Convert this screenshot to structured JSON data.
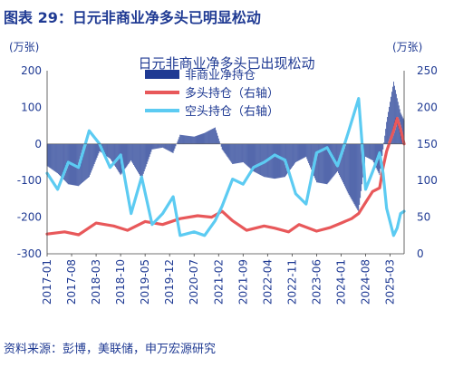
{
  "figure": {
    "title": "图表 29：日元非商业净多头已明显松动",
    "source": "资料来源：彭博，美联储，申万宏源研究"
  },
  "colors": {
    "net": "#1f3a93",
    "long": "#e8585a",
    "short": "#5ccbf2",
    "title": "#1f3a93"
  },
  "chart_data": {
    "type": "line",
    "title": "日元非商业净多头已出现松动",
    "y_left_unit": "(万张)",
    "y_right_unit": "(万张)",
    "y_left": {
      "min": -300,
      "max": 200,
      "ticks": [
        -300,
        -200,
        -100,
        0,
        100,
        200
      ]
    },
    "y_right": {
      "min": 0,
      "max": 250,
      "ticks": [
        0,
        50,
        100,
        150,
        200,
        250
      ]
    },
    "x_tick_labels": [
      "2017-01",
      "2017-08",
      "2018-03",
      "2018-10",
      "2019-05",
      "2019-12",
      "2020-07",
      "2021-02",
      "2021-09",
      "2022-04",
      "2022-11",
      "2023-06",
      "2024-01",
      "2024-08",
      "2025-03"
    ],
    "x_range": [
      "2017-01",
      "2025-07"
    ],
    "legend": {
      "placement": "top-center",
      "entries": [
        "非商业净持仓",
        "多头持仓（右轴）",
        "空头持仓（右轴）"
      ]
    },
    "series": [
      {
        "name": "非商业净持仓",
        "axis": "left",
        "style": "bar",
        "points": [
          [
            "2017-01",
            -60
          ],
          [
            "2017-04",
            -80
          ],
          [
            "2017-07",
            -110
          ],
          [
            "2017-10",
            -115
          ],
          [
            "2018-01",
            -90
          ],
          [
            "2018-04",
            -20
          ],
          [
            "2018-07",
            -40
          ],
          [
            "2018-10",
            -85
          ],
          [
            "2019-01",
            -45
          ],
          [
            "2019-04",
            -95
          ],
          [
            "2019-07",
            -15
          ],
          [
            "2019-10",
            -10
          ],
          [
            "2020-01",
            -25
          ],
          [
            "2020-03",
            25
          ],
          [
            "2020-07",
            20
          ],
          [
            "2020-10",
            30
          ],
          [
            "2021-01",
            45
          ],
          [
            "2021-03",
            -15
          ],
          [
            "2021-06",
            -55
          ],
          [
            "2021-09",
            -50
          ],
          [
            "2021-12",
            -75
          ],
          [
            "2022-03",
            -90
          ],
          [
            "2022-06",
            -95
          ],
          [
            "2022-09",
            -90
          ],
          [
            "2022-12",
            -50
          ],
          [
            "2023-03",
            -35
          ],
          [
            "2023-06",
            -105
          ],
          [
            "2023-09",
            -110
          ],
          [
            "2023-12",
            -75
          ],
          [
            "2024-03",
            -135
          ],
          [
            "2024-06",
            -185
          ],
          [
            "2024-08",
            -35
          ],
          [
            "2024-10",
            -45
          ],
          [
            "2024-12",
            -85
          ],
          [
            "2025-01",
            -15
          ],
          [
            "2025-02",
            60
          ],
          [
            "2025-04",
            170
          ],
          [
            "2025-05",
            125
          ],
          [
            "2025-06",
            85
          ],
          [
            "2025-07",
            65
          ]
        ]
      },
      {
        "name": "多头持仓（右轴）",
        "axis": "right",
        "style": "line",
        "points": [
          [
            "2017-01",
            27
          ],
          [
            "2017-06",
            30
          ],
          [
            "2017-10",
            26
          ],
          [
            "2018-03",
            42
          ],
          [
            "2018-08",
            38
          ],
          [
            "2018-12",
            32
          ],
          [
            "2019-05",
            44
          ],
          [
            "2019-10",
            40
          ],
          [
            "2020-03",
            48
          ],
          [
            "2020-08",
            52
          ],
          [
            "2020-12",
            50
          ],
          [
            "2021-03",
            58
          ],
          [
            "2021-06",
            45
          ],
          [
            "2021-10",
            32
          ],
          [
            "2022-03",
            38
          ],
          [
            "2022-06",
            35
          ],
          [
            "2022-10",
            30
          ],
          [
            "2023-01",
            40
          ],
          [
            "2023-06",
            31
          ],
          [
            "2023-10",
            36
          ],
          [
            "2024-01",
            42
          ],
          [
            "2024-04",
            48
          ],
          [
            "2024-06",
            55
          ],
          [
            "2024-08",
            70
          ],
          [
            "2024-10",
            85
          ],
          [
            "2024-12",
            90
          ],
          [
            "2025-01",
            118
          ],
          [
            "2025-02",
            140
          ],
          [
            "2025-04",
            168
          ],
          [
            "2025-05",
            185
          ],
          [
            "2025-06",
            170
          ],
          [
            "2025-07",
            150
          ]
        ]
      },
      {
        "name": "空头持仓（右轴）",
        "axis": "right",
        "style": "line",
        "points": [
          [
            "2017-01",
            110
          ],
          [
            "2017-04",
            88
          ],
          [
            "2017-07",
            125
          ],
          [
            "2017-10",
            118
          ],
          [
            "2018-01",
            168
          ],
          [
            "2018-04",
            150
          ],
          [
            "2018-07",
            118
          ],
          [
            "2018-10",
            135
          ],
          [
            "2019-01",
            55
          ],
          [
            "2019-04",
            105
          ],
          [
            "2019-07",
            40
          ],
          [
            "2019-10",
            55
          ],
          [
            "2020-01",
            78
          ],
          [
            "2020-03",
            25
          ],
          [
            "2020-07",
            30
          ],
          [
            "2020-10",
            25
          ],
          [
            "2021-01",
            45
          ],
          [
            "2021-03",
            65
          ],
          [
            "2021-06",
            102
          ],
          [
            "2021-09",
            95
          ],
          [
            "2021-12",
            118
          ],
          [
            "2022-03",
            125
          ],
          [
            "2022-06",
            135
          ],
          [
            "2022-09",
            128
          ],
          [
            "2022-12",
            82
          ],
          [
            "2023-03",
            68
          ],
          [
            "2023-06",
            138
          ],
          [
            "2023-09",
            145
          ],
          [
            "2023-12",
            120
          ],
          [
            "2024-03",
            165
          ],
          [
            "2024-06",
            212
          ],
          [
            "2024-08",
            88
          ],
          [
            "2024-10",
            112
          ],
          [
            "2024-12",
            138
          ],
          [
            "2025-01",
            110
          ],
          [
            "2025-02",
            62
          ],
          [
            "2025-04",
            25
          ],
          [
            "2025-05",
            35
          ],
          [
            "2025-06",
            55
          ],
          [
            "2025-07",
            58
          ]
        ]
      }
    ]
  }
}
